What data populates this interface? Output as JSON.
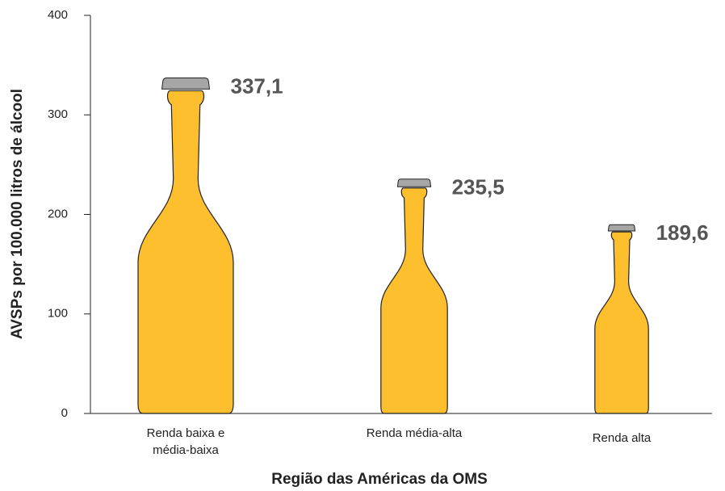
{
  "chart_data": {
    "type": "bottle-bar",
    "y_label": "AVSPs por 100.000 litros de álcool",
    "x_label": "Região das Américas da OMS",
    "categories": [
      "Renda baixa e média-baixa",
      "Renda média-alta",
      "Renda alta"
    ],
    "values": [
      337.1,
      235.5,
      189.6
    ],
    "value_labels": [
      "337,1",
      "235,5",
      "189,6"
    ],
    "color": "#fdbf2d",
    "cap_color": "#a6a6a6",
    "ylim": [
      0,
      400
    ],
    "yticks": [
      0,
      100,
      200,
      300,
      400
    ]
  }
}
